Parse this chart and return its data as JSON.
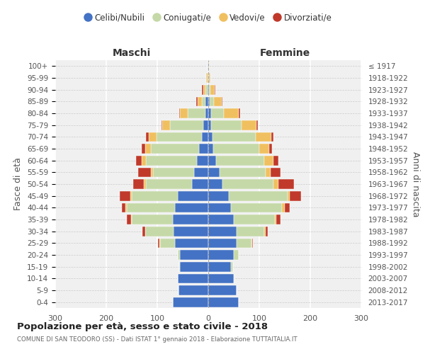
{
  "age_groups": [
    "0-4",
    "5-9",
    "10-14",
    "15-19",
    "20-24",
    "25-29",
    "30-34",
    "35-39",
    "40-44",
    "45-49",
    "50-54",
    "55-59",
    "60-64",
    "65-69",
    "70-74",
    "75-79",
    "80-84",
    "85-89",
    "90-94",
    "95-99",
    "100+"
  ],
  "birth_years": [
    "2013-2017",
    "2008-2012",
    "2003-2007",
    "1998-2002",
    "1993-1997",
    "1988-1992",
    "1983-1987",
    "1978-1982",
    "1973-1977",
    "1968-1972",
    "1963-1967",
    "1958-1962",
    "1953-1957",
    "1948-1952",
    "1943-1947",
    "1938-1942",
    "1933-1937",
    "1928-1932",
    "1923-1927",
    "1918-1922",
    "≤ 1917"
  ],
  "male_celibi": [
    70,
    58,
    60,
    55,
    55,
    65,
    68,
    70,
    65,
    60,
    32,
    28,
    22,
    18,
    12,
    10,
    5,
    5,
    2,
    1,
    1
  ],
  "male_coniugati": [
    0,
    0,
    0,
    2,
    5,
    30,
    55,
    80,
    95,
    90,
    90,
    80,
    100,
    95,
    90,
    65,
    35,
    8,
    3,
    1,
    0
  ],
  "male_vedovi": [
    0,
    0,
    0,
    0,
    0,
    1,
    1,
    2,
    2,
    3,
    5,
    5,
    8,
    10,
    15,
    15,
    15,
    8,
    5,
    2,
    0
  ],
  "male_divorziati": [
    0,
    0,
    0,
    0,
    0,
    2,
    5,
    8,
    8,
    20,
    20,
    25,
    12,
    8,
    5,
    2,
    2,
    2,
    2,
    0,
    0
  ],
  "female_celibi": [
    60,
    55,
    50,
    45,
    50,
    55,
    55,
    50,
    45,
    40,
    28,
    22,
    15,
    10,
    8,
    5,
    5,
    3,
    1,
    0,
    0
  ],
  "female_coniugati": [
    0,
    0,
    2,
    3,
    10,
    30,
    55,
    80,
    100,
    115,
    100,
    90,
    95,
    90,
    85,
    60,
    25,
    8,
    3,
    1,
    0
  ],
  "female_vedovi": [
    0,
    0,
    0,
    0,
    0,
    1,
    2,
    3,
    5,
    5,
    10,
    10,
    18,
    20,
    30,
    30,
    30,
    15,
    8,
    3,
    1
  ],
  "female_divorziati": [
    0,
    0,
    0,
    0,
    0,
    2,
    5,
    8,
    10,
    22,
    30,
    20,
    10,
    5,
    5,
    2,
    2,
    2,
    2,
    0,
    0
  ],
  "color_celibi": "#4472c4",
  "color_coniugati": "#c5d9a8",
  "color_vedovi": "#f0c060",
  "color_divorziati": "#c0392b",
  "xlim": 300,
  "title": "Popolazione per età, sesso e stato civile - 2018",
  "subtitle": "COMUNE DI SAN TEODORO (SS) - Dati ISTAT 1° gennaio 2018 - Elaborazione TUTTAITALIA.IT",
  "ylabel_left": "Fasce di età",
  "ylabel_right": "Anni di nascita",
  "xlabel_left": "Maschi",
  "xlabel_right": "Femmine",
  "background_color": "#f0f0f0"
}
